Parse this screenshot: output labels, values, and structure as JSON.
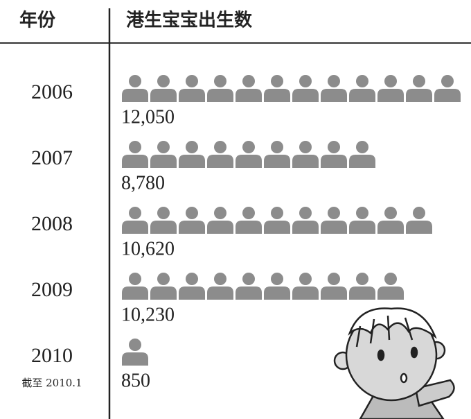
{
  "chart_data": {
    "type": "pictograph",
    "category_header": "年份",
    "value_header": "港生宝宝出生数",
    "categories": [
      "2006",
      "2007",
      "2008",
      "2009",
      "2010"
    ],
    "category_notes": [
      null,
      null,
      null,
      null,
      "截至 2010.1"
    ],
    "values": [
      12050,
      8780,
      10620,
      10230,
      850
    ],
    "value_labels": [
      "12,050",
      "8,780",
      "10,620",
      "10,230",
      "850"
    ],
    "color": "#8c8c8c"
  }
}
